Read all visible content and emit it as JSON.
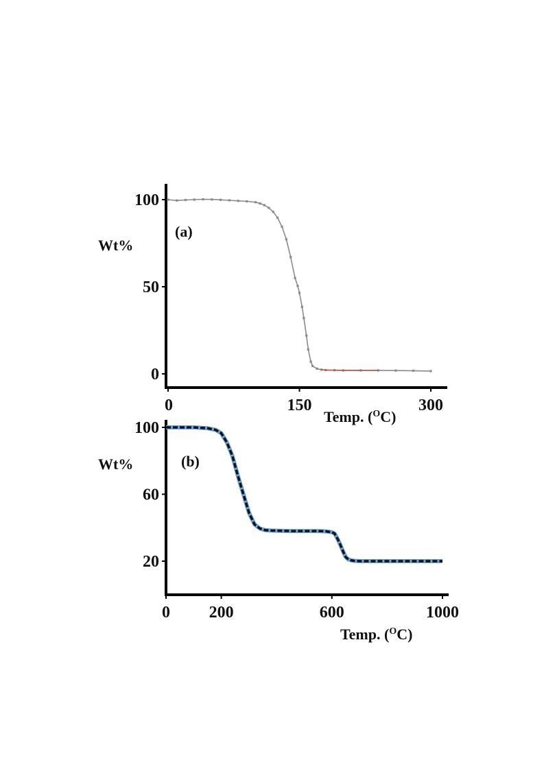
{
  "chart_data": [
    {
      "type": "line",
      "panel_label": "(a)",
      "xlabel": "Temp. (",
      "xlabel_sup": "O",
      "xlabel_end": "C)",
      "ylabel": "Wt%",
      "xlim": [
        0,
        310
      ],
      "ylim": [
        -8,
        110
      ],
      "xticks": [
        0,
        150,
        300
      ],
      "xtick_labels": [
        "0",
        "150",
        "300"
      ],
      "yticks": [
        0,
        50,
        100
      ],
      "ytick_labels": [
        "0",
        "50",
        "100"
      ],
      "grid": false,
      "colors": {
        "line": "#8a8a8a",
        "tail": "#c44a3a",
        "axis": "#000000"
      },
      "series": [
        {
          "x": [
            0,
            10,
            20,
            30,
            40,
            50,
            60,
            70,
            80,
            90,
            100,
            105,
            110,
            115,
            120,
            125,
            130,
            135,
            140,
            145,
            148,
            150,
            153,
            155,
            158,
            160,
            163,
            165,
            170,
            175,
            180,
            190,
            200,
            220,
            240,
            260,
            280,
            300
          ],
          "y": [
            100,
            99.5,
            99.8,
            100,
            100.2,
            100.1,
            99.9,
            99.6,
            99.3,
            99.0,
            98.5,
            97.8,
            96.8,
            95.3,
            93.0,
            89.6,
            84.5,
            77.2,
            67.0,
            55.0,
            50.5,
            46.5,
            38.5,
            32.0,
            22.0,
            14.0,
            7.0,
            4.5,
            3.0,
            2.4,
            2.2,
            2.1,
            2.0,
            2.0,
            2.0,
            1.9,
            1.8,
            1.6
          ]
        }
      ]
    },
    {
      "type": "line",
      "panel_label": "(b)",
      "xlabel": "Temp. (",
      "xlabel_sup": "O",
      "xlabel_end": "C)",
      "ylabel": "Wt%",
      "xlim": [
        0,
        1000
      ],
      "ylim": [
        0,
        105
      ],
      "xticks": [
        0,
        200,
        600,
        1000
      ],
      "xtick_labels": [
        "0",
        "200",
        "600",
        "1000"
      ],
      "yticks": [
        20,
        60,
        100
      ],
      "ytick_labels": [
        "20",
        "60",
        "100"
      ],
      "grid": false,
      "colors": {
        "line": "#111111",
        "shade": "#6aa3d8",
        "axis": "#000000"
      },
      "series": [
        {
          "x": [
            0,
            50,
            100,
            150,
            180,
            200,
            220,
            240,
            260,
            280,
            300,
            320,
            340,
            360,
            380,
            400,
            450,
            500,
            550,
            580,
            600,
            610,
            620,
            630,
            640,
            650,
            660,
            670,
            680,
            700,
            750,
            800,
            850,
            900,
            950,
            1000
          ],
          "y": [
            100,
            100,
            100,
            99.5,
            98.5,
            96.5,
            91.0,
            83.0,
            71.0,
            60.0,
            49.0,
            42.0,
            39.5,
            38.5,
            38.3,
            38.2,
            38.0,
            38.0,
            38.0,
            37.8,
            37.3,
            36.5,
            33.5,
            30.0,
            26.0,
            22.5,
            21.0,
            20.5,
            20.2,
            20.0,
            20.0,
            20.0,
            20.0,
            20.0,
            20.0,
            20.0
          ]
        }
      ]
    }
  ]
}
